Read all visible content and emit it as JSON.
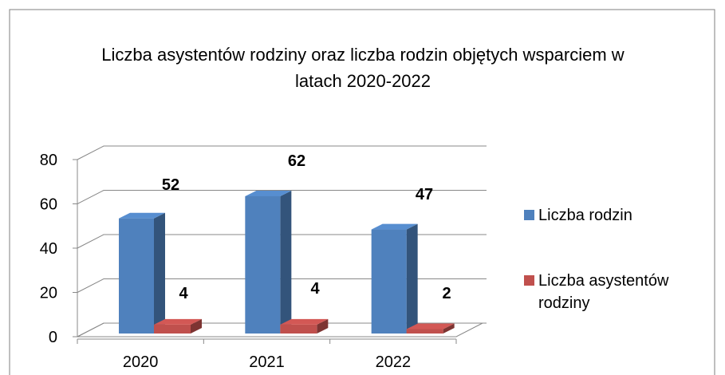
{
  "chart_data": {
    "type": "bar3d",
    "title": "Liczba asystentów rodziny oraz liczba rodzin objętych wsparciem w latach 2020-2022",
    "categories": [
      "2020",
      "2021",
      "2022"
    ],
    "series": [
      {
        "name": "Liczba rodzin",
        "color": "#4f81bd",
        "values": [
          52,
          62,
          47
        ]
      },
      {
        "name": "Liczba asystentów rodziny",
        "color": "#c0504d",
        "values": [
          4,
          4,
          2
        ]
      }
    ],
    "ylim": [
      0,
      80
    ],
    "yticks": [
      0,
      20,
      40,
      60,
      80
    ],
    "grid": true,
    "legend": "right"
  }
}
